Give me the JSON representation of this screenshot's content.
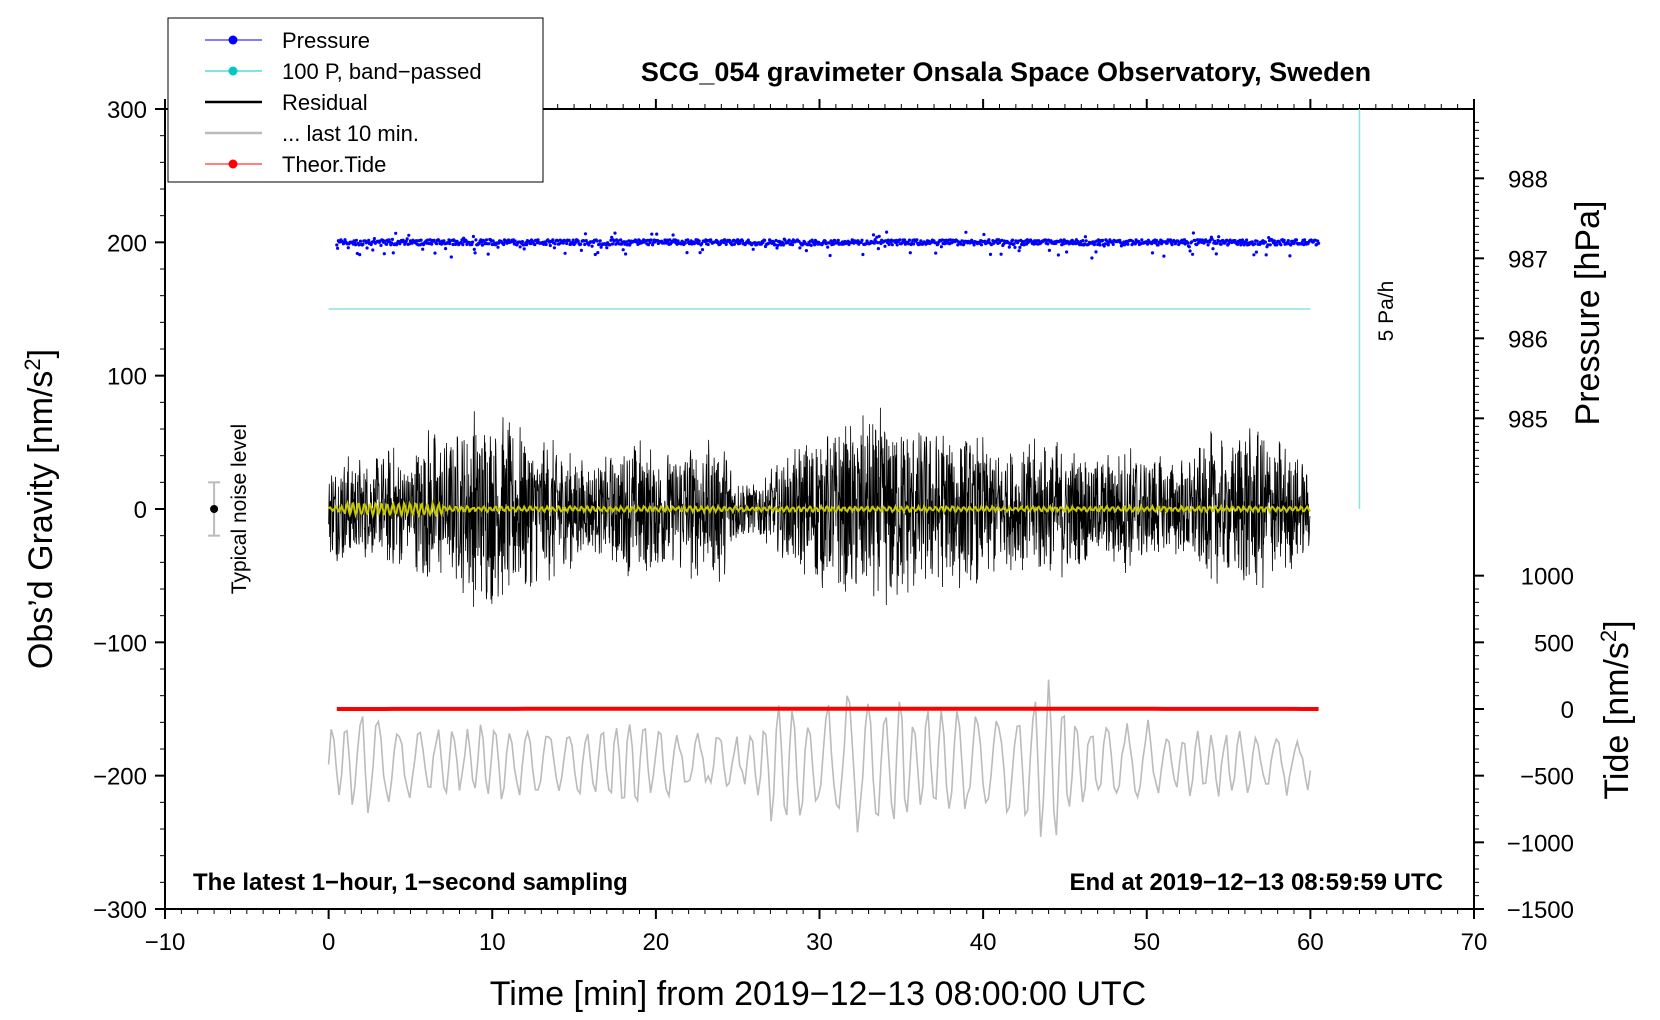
{
  "chart_data": {
    "type": "line",
    "title": "SCG_054 gravimeter Onsala Space Observatory, Sweden",
    "xlabel": "Time [min] from 2019−12−13 08:00:00 UTC",
    "ylabel_left_main": "Obs’d Gravity [nm/s",
    "ylabel_left_sup": "2",
    "ylabel_left_end": "]",
    "ylabel_right_top": "Pressure [hPa]",
    "ylabel_right_bottom_main": "Tide [nm/s",
    "ylabel_right_bottom_sup": "2",
    "ylabel_right_bottom_end": "]",
    "xlim": [
      -10,
      70
    ],
    "ylim": [
      -300,
      300
    ],
    "x_ticks": [
      -10,
      0,
      10,
      20,
      30,
      40,
      50,
      60,
      70
    ],
    "x_tick_labels": [
      "−10",
      "0",
      "10",
      "20",
      "30",
      "40",
      "50",
      "60",
      "70"
    ],
    "y_ticks": [
      300,
      200,
      100,
      0,
      -100,
      -200,
      -300
    ],
    "y_tick_labels": [
      "300",
      "200",
      "100",
      "0",
      "−100",
      "−200",
      "−300"
    ],
    "pressure_axis": {
      "ticks": [
        988,
        987,
        986,
        985
      ],
      "tick_labels": [
        "988",
        "987",
        "986",
        "985"
      ],
      "map": "gravity = 200 + (hPa - 987.2) * 60"
    },
    "tide_axis": {
      "ticks": [
        1000,
        500,
        0,
        -500,
        -1000,
        -1500
      ],
      "tick_labels": [
        "1000",
        "500",
        "0",
        "−500",
        "−1000",
        "−1500"
      ],
      "map": "gravity = -150 + tide * 0.1"
    },
    "legend": [
      {
        "label": "Pressure",
        "color": "#0000ff",
        "style": "line-dot"
      },
      {
        "label": "100 P, band−passed",
        "color": "#00c8c8",
        "style": "line-dot"
      },
      {
        "label": "Residual",
        "color": "#000000",
        "style": "line"
      },
      {
        "label": "... last 10 min.",
        "color": "#bbbbbb",
        "style": "line"
      },
      {
        "label": "Theor.Tide",
        "color": "#ff0000",
        "style": "line-dot"
      }
    ],
    "series": [
      {
        "name": "Pressure",
        "color": "#0000ff",
        "x_range": [
          0.5,
          60.5
        ],
        "level": 200,
        "scatter": 4
      },
      {
        "name": "100 P, band-passed",
        "color": "#8fe0e0",
        "x_range": [
          0,
          60
        ],
        "level": 150
      },
      {
        "name": "Residual",
        "color": "#000000",
        "x_range": [
          0,
          60
        ],
        "level": 0,
        "envelope": [
          [
            0,
            35
          ],
          [
            1,
            45
          ],
          [
            2,
            40
          ],
          [
            3,
            40
          ],
          [
            4,
            50
          ],
          [
            5,
            40
          ],
          [
            6,
            65
          ],
          [
            7,
            55
          ],
          [
            8,
            60
          ],
          [
            9,
            80
          ],
          [
            10,
            75
          ],
          [
            11,
            70
          ],
          [
            12,
            65
          ],
          [
            13,
            55
          ],
          [
            14,
            60
          ],
          [
            15,
            45
          ],
          [
            16,
            35
          ],
          [
            17,
            40
          ],
          [
            18,
            50
          ],
          [
            19,
            55
          ],
          [
            20,
            50
          ],
          [
            21,
            45
          ],
          [
            22,
            55
          ],
          [
            23,
            50
          ],
          [
            24,
            60
          ],
          [
            25,
            25
          ],
          [
            26,
            20
          ],
          [
            27,
            30
          ],
          [
            28,
            40
          ],
          [
            29,
            55
          ],
          [
            30,
            60
          ],
          [
            31,
            65
          ],
          [
            32,
            70
          ],
          [
            33,
            75
          ],
          [
            34,
            80
          ],
          [
            35,
            70
          ],
          [
            36,
            65
          ],
          [
            37,
            60
          ],
          [
            38,
            65
          ],
          [
            39,
            60
          ],
          [
            40,
            55
          ],
          [
            41,
            50
          ],
          [
            42,
            45
          ],
          [
            43,
            55
          ],
          [
            44,
            50
          ],
          [
            45,
            55
          ],
          [
            46,
            45
          ],
          [
            47,
            40
          ],
          [
            48,
            45
          ],
          [
            49,
            50
          ],
          [
            50,
            45
          ],
          [
            51,
            40
          ],
          [
            52,
            40
          ],
          [
            53,
            45
          ],
          [
            54,
            60
          ],
          [
            55,
            50
          ],
          [
            56,
            70
          ],
          [
            57,
            65
          ],
          [
            58,
            55
          ],
          [
            59,
            45
          ],
          [
            60,
            30
          ]
        ]
      },
      {
        "name": "Residual smooth",
        "color": "#c8c800",
        "x_range": [
          0,
          60
        ],
        "level": 0
      },
      {
        "name": "... last 10 min.",
        "color": "#bbbbbb",
        "x_range": [
          0,
          60
        ],
        "level": -190,
        "envelope": [
          [
            0,
            25
          ],
          [
            2,
            45
          ],
          [
            4,
            30
          ],
          [
            6,
            25
          ],
          [
            8,
            30
          ],
          [
            10,
            30
          ],
          [
            12,
            30
          ],
          [
            14,
            30
          ],
          [
            16,
            25
          ],
          [
            18,
            40
          ],
          [
            20,
            30
          ],
          [
            22,
            25
          ],
          [
            24,
            25
          ],
          [
            26,
            20
          ],
          [
            27,
            45
          ],
          [
            28,
            50
          ],
          [
            30,
            50
          ],
          [
            32,
            60
          ],
          [
            34,
            55
          ],
          [
            36,
            45
          ],
          [
            38,
            40
          ],
          [
            40,
            45
          ],
          [
            42,
            40
          ],
          [
            43,
            60
          ],
          [
            44,
            70
          ],
          [
            45,
            55
          ],
          [
            46,
            40
          ],
          [
            48,
            30
          ],
          [
            50,
            30
          ],
          [
            52,
            25
          ],
          [
            54,
            25
          ],
          [
            56,
            25
          ],
          [
            58,
            25
          ],
          [
            60,
            20
          ]
        ]
      },
      {
        "name": "Theor.Tide",
        "color": "#ff0000",
        "x_range": [
          0.5,
          60.5
        ],
        "level": -150
      }
    ],
    "noise_bar": {
      "x": -7,
      "value": 0,
      "range": [
        -20,
        20
      ],
      "label": "Typical noise level"
    },
    "scale_bar": {
      "x": 63,
      "range": [
        0,
        300
      ],
      "label": "5 Pa/h",
      "color": "#8fe0e0"
    }
  },
  "annotations": {
    "bottom_left": "The latest 1−hour, 1−second sampling",
    "bottom_right": "End at 2019−12−13 08:59:59 UTC"
  }
}
